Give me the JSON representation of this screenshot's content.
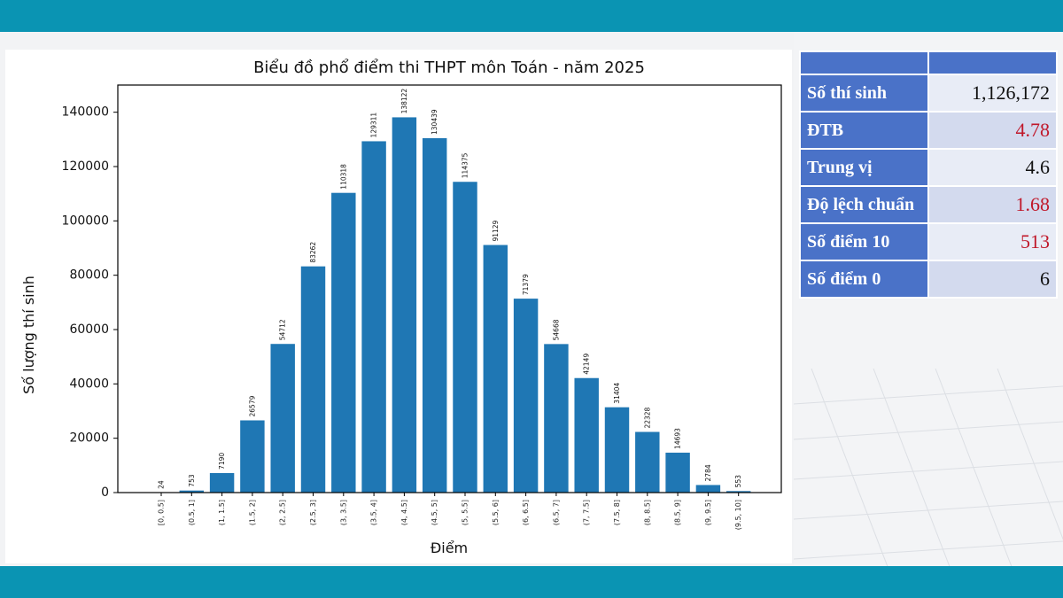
{
  "chart_data": {
    "type": "bar",
    "title": "Biểu đồ phổ điểm thi THPT môn Toán - năm 2025",
    "xlabel": "Điểm",
    "ylabel": "Số lượng thí sinh",
    "categories": [
      "[0, 0.5]",
      "(0.5, 1]",
      "(1, 1.5]",
      "(1.5, 2]",
      "(2, 2.5]",
      "(2.5, 3]",
      "(3, 3.5]",
      "(3.5, 4]",
      "(4, 4.5]",
      "(4.5, 5]",
      "(5, 5.5]",
      "(5.5, 6]",
      "(6, 6.5]",
      "(6.5, 7]",
      "(7, 7.5]",
      "(7.5, 8]",
      "(8, 8.5]",
      "(8.5, 9]",
      "(9, 9.5]",
      "(9.5, 10]"
    ],
    "values": [
      24,
      753,
      7190,
      26579,
      54712,
      83262,
      110318,
      129311,
      138122,
      130439,
      114375,
      91129,
      71379,
      54668,
      42149,
      31404,
      22328,
      14693,
      2784,
      553
    ],
    "ylim": [
      0,
      150000
    ],
    "yticks": [
      0,
      20000,
      40000,
      60000,
      80000,
      100000,
      120000,
      140000
    ],
    "bar_color": "#1f77b4",
    "grid": false,
    "legend": false
  },
  "stats": {
    "rows": [
      {
        "label": "Số thí sinh",
        "value": "1,126,172",
        "highlight": false
      },
      {
        "label": "ĐTB",
        "value": "4.78",
        "highlight": true
      },
      {
        "label": "Trung vị",
        "value": "4.6",
        "highlight": false
      },
      {
        "label": "Độ lệch chuẩn",
        "value": "1.68",
        "highlight": true
      },
      {
        "label": "Số điểm 10",
        "value": "513",
        "highlight": true
      },
      {
        "label": "Số điểm 0",
        "value": "6",
        "highlight": false
      }
    ]
  },
  "colors": {
    "band": "#0a94b3",
    "header": "#4a72c8",
    "value_highlight": "#c0182a"
  }
}
